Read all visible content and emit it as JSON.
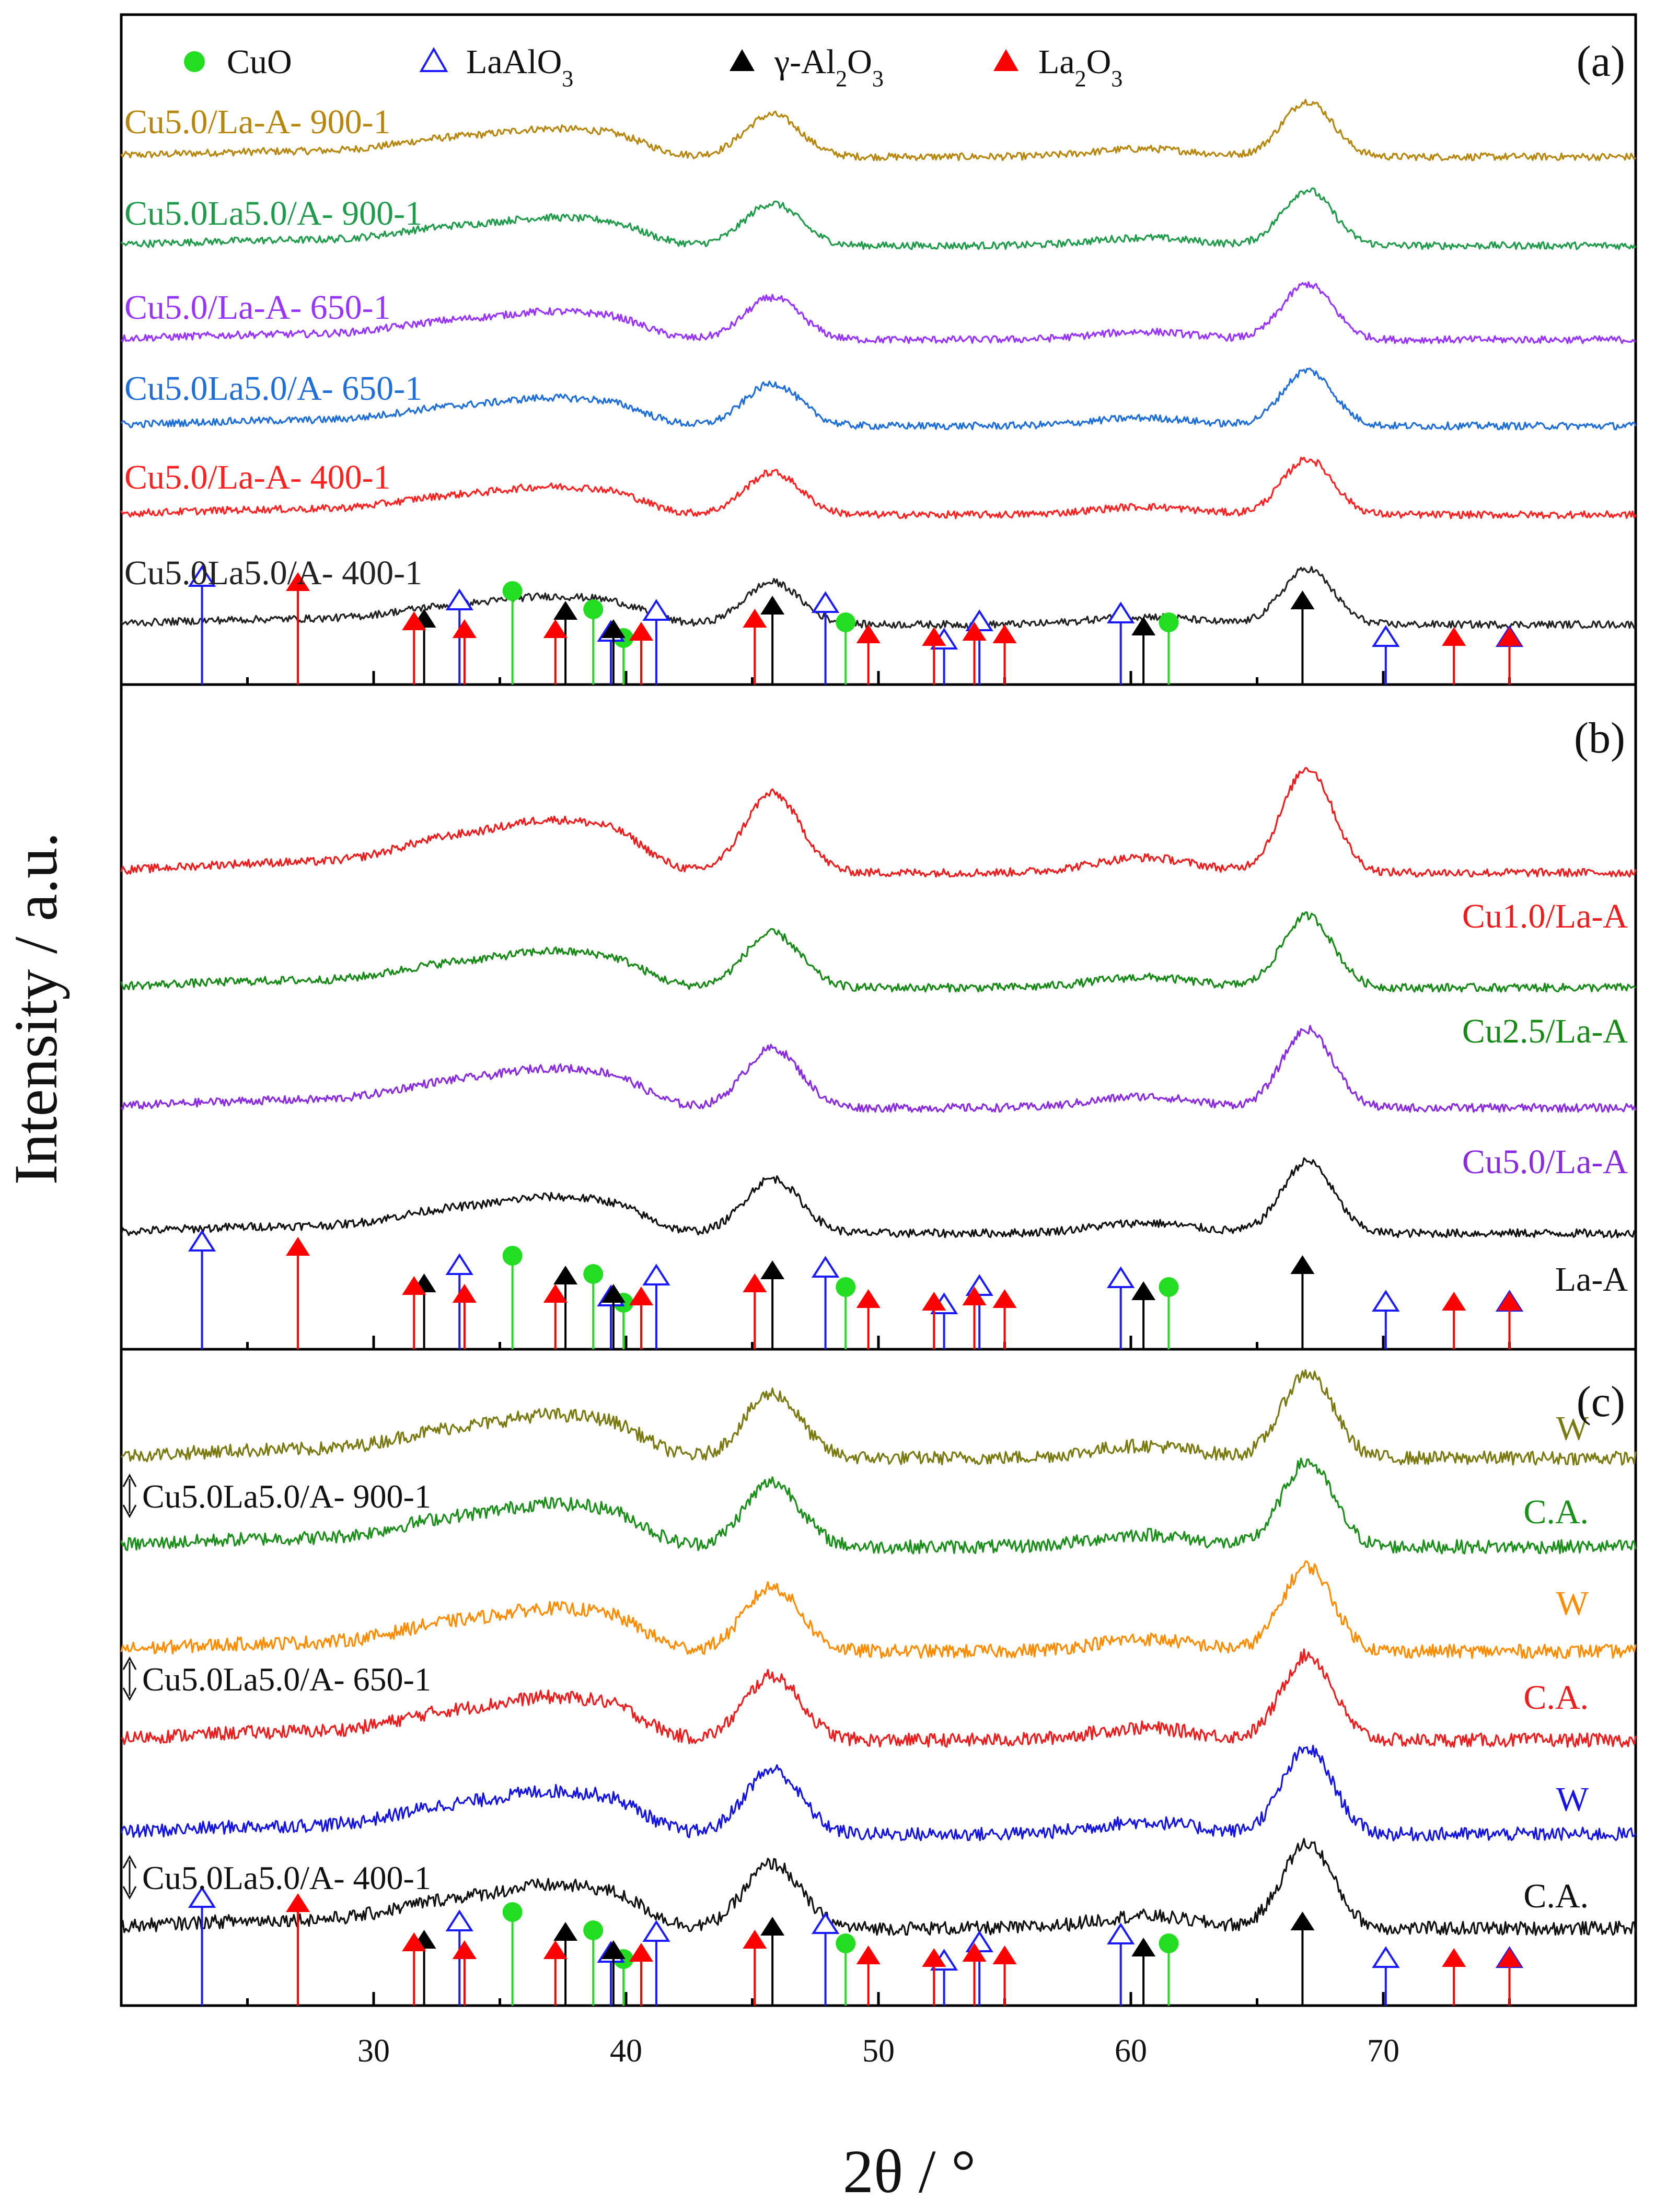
{
  "chart_data": [
    {
      "type": "line",
      "panel_label": "(a)",
      "legend": [
        {
          "marker": "filled-circle",
          "color": "#22dd22",
          "label": "CuO"
        },
        {
          "marker": "open-triangle",
          "color": "#1a1aff",
          "label": "LaAlO3"
        },
        {
          "marker": "filled-triangle",
          "color": "#000000",
          "label": "γ-Al2O3"
        },
        {
          "marker": "filled-triangle",
          "color": "#ff0000",
          "label": "La2O3"
        }
      ],
      "series": [
        {
          "name": "Cu5.0/La-A- 900-1",
          "color": "#b8860b"
        },
        {
          "name": "Cu5.0La5.0/A- 900-1",
          "color": "#1e9c4a"
        },
        {
          "name": "Cu5.0/La-A- 650-1",
          "color": "#9933ff"
        },
        {
          "name": "Cu5.0La5.0/A- 650-1",
          "color": "#1e6fd9"
        },
        {
          "name": "Cu5.0/La-A- 400-1",
          "color": "#ff2020"
        },
        {
          "name": "Cu5.0La5.0/A- 400-1",
          "color": "#222222"
        }
      ],
      "peaks_2theta": [
        37.0,
        45.8,
        67.0
      ]
    },
    {
      "type": "line",
      "panel_label": "(b)",
      "series": [
        {
          "name": "Cu1.0/La-A",
          "color": "#ee1c1c"
        },
        {
          "name": "Cu2.5/La-A",
          "color": "#158a15"
        },
        {
          "name": "Cu5.0/La-A",
          "color": "#8a2be2"
        },
        {
          "name": "La-A",
          "color": "#111111"
        }
      ],
      "peaks_2theta": [
        32.8,
        37.0,
        45.6,
        67.0
      ]
    },
    {
      "type": "line",
      "panel_label": "(c)",
      "series": [
        {
          "name": "W",
          "group": "Cu5.0La5.0/A- 900-1",
          "color": "#7a7a10"
        },
        {
          "name": "C.A.",
          "group": "Cu5.0La5.0/A- 900-1",
          "color": "#1a8f1a"
        },
        {
          "name": "W",
          "group": "Cu5.0La5.0/A- 650-1",
          "color": "#ff8c00"
        },
        {
          "name": "C.A.",
          "group": "Cu5.0La5.0/A- 650-1",
          "color": "#ee1c1c"
        },
        {
          "name": "W",
          "group": "Cu5.0La5.0/A- 400-1",
          "color": "#1414e6"
        },
        {
          "name": "C.A.",
          "group": "Cu5.0La5.0/A- 400-1",
          "color": "#111111"
        }
      ],
      "group_labels": [
        "Cu5.0La5.0/A- 900-1",
        "Cu5.0La5.0/A- 650-1",
        "Cu5.0La5.0/A- 400-1"
      ],
      "peaks_2theta": [
        37.0,
        45.8,
        67.0
      ]
    }
  ],
  "axes": {
    "xlabel": "2θ / °",
    "ylabel": "Intensity / a.u.",
    "xlim": [
      20,
      80
    ],
    "xticks": [
      30,
      40,
      50,
      60,
      70
    ]
  },
  "reference_patterns": {
    "CuO": [
      35.5,
      38.7,
      48.7,
      61.5,
      39.9
    ],
    "LaAlO3": [
      23.2,
      33.4,
      41.2,
      47.9,
      54.0,
      59.6,
      70.1,
      75.0,
      39.4,
      52.6
    ],
    "gamma_Al2O3": [
      32.0,
      37.6,
      39.5,
      45.8,
      60.5,
      66.8
    ],
    "La2O3": [
      27.0,
      31.6,
      33.6,
      37.2,
      40.6,
      45.1,
      49.6,
      52.2,
      53.8,
      55.0,
      72.8,
      75.0
    ]
  }
}
